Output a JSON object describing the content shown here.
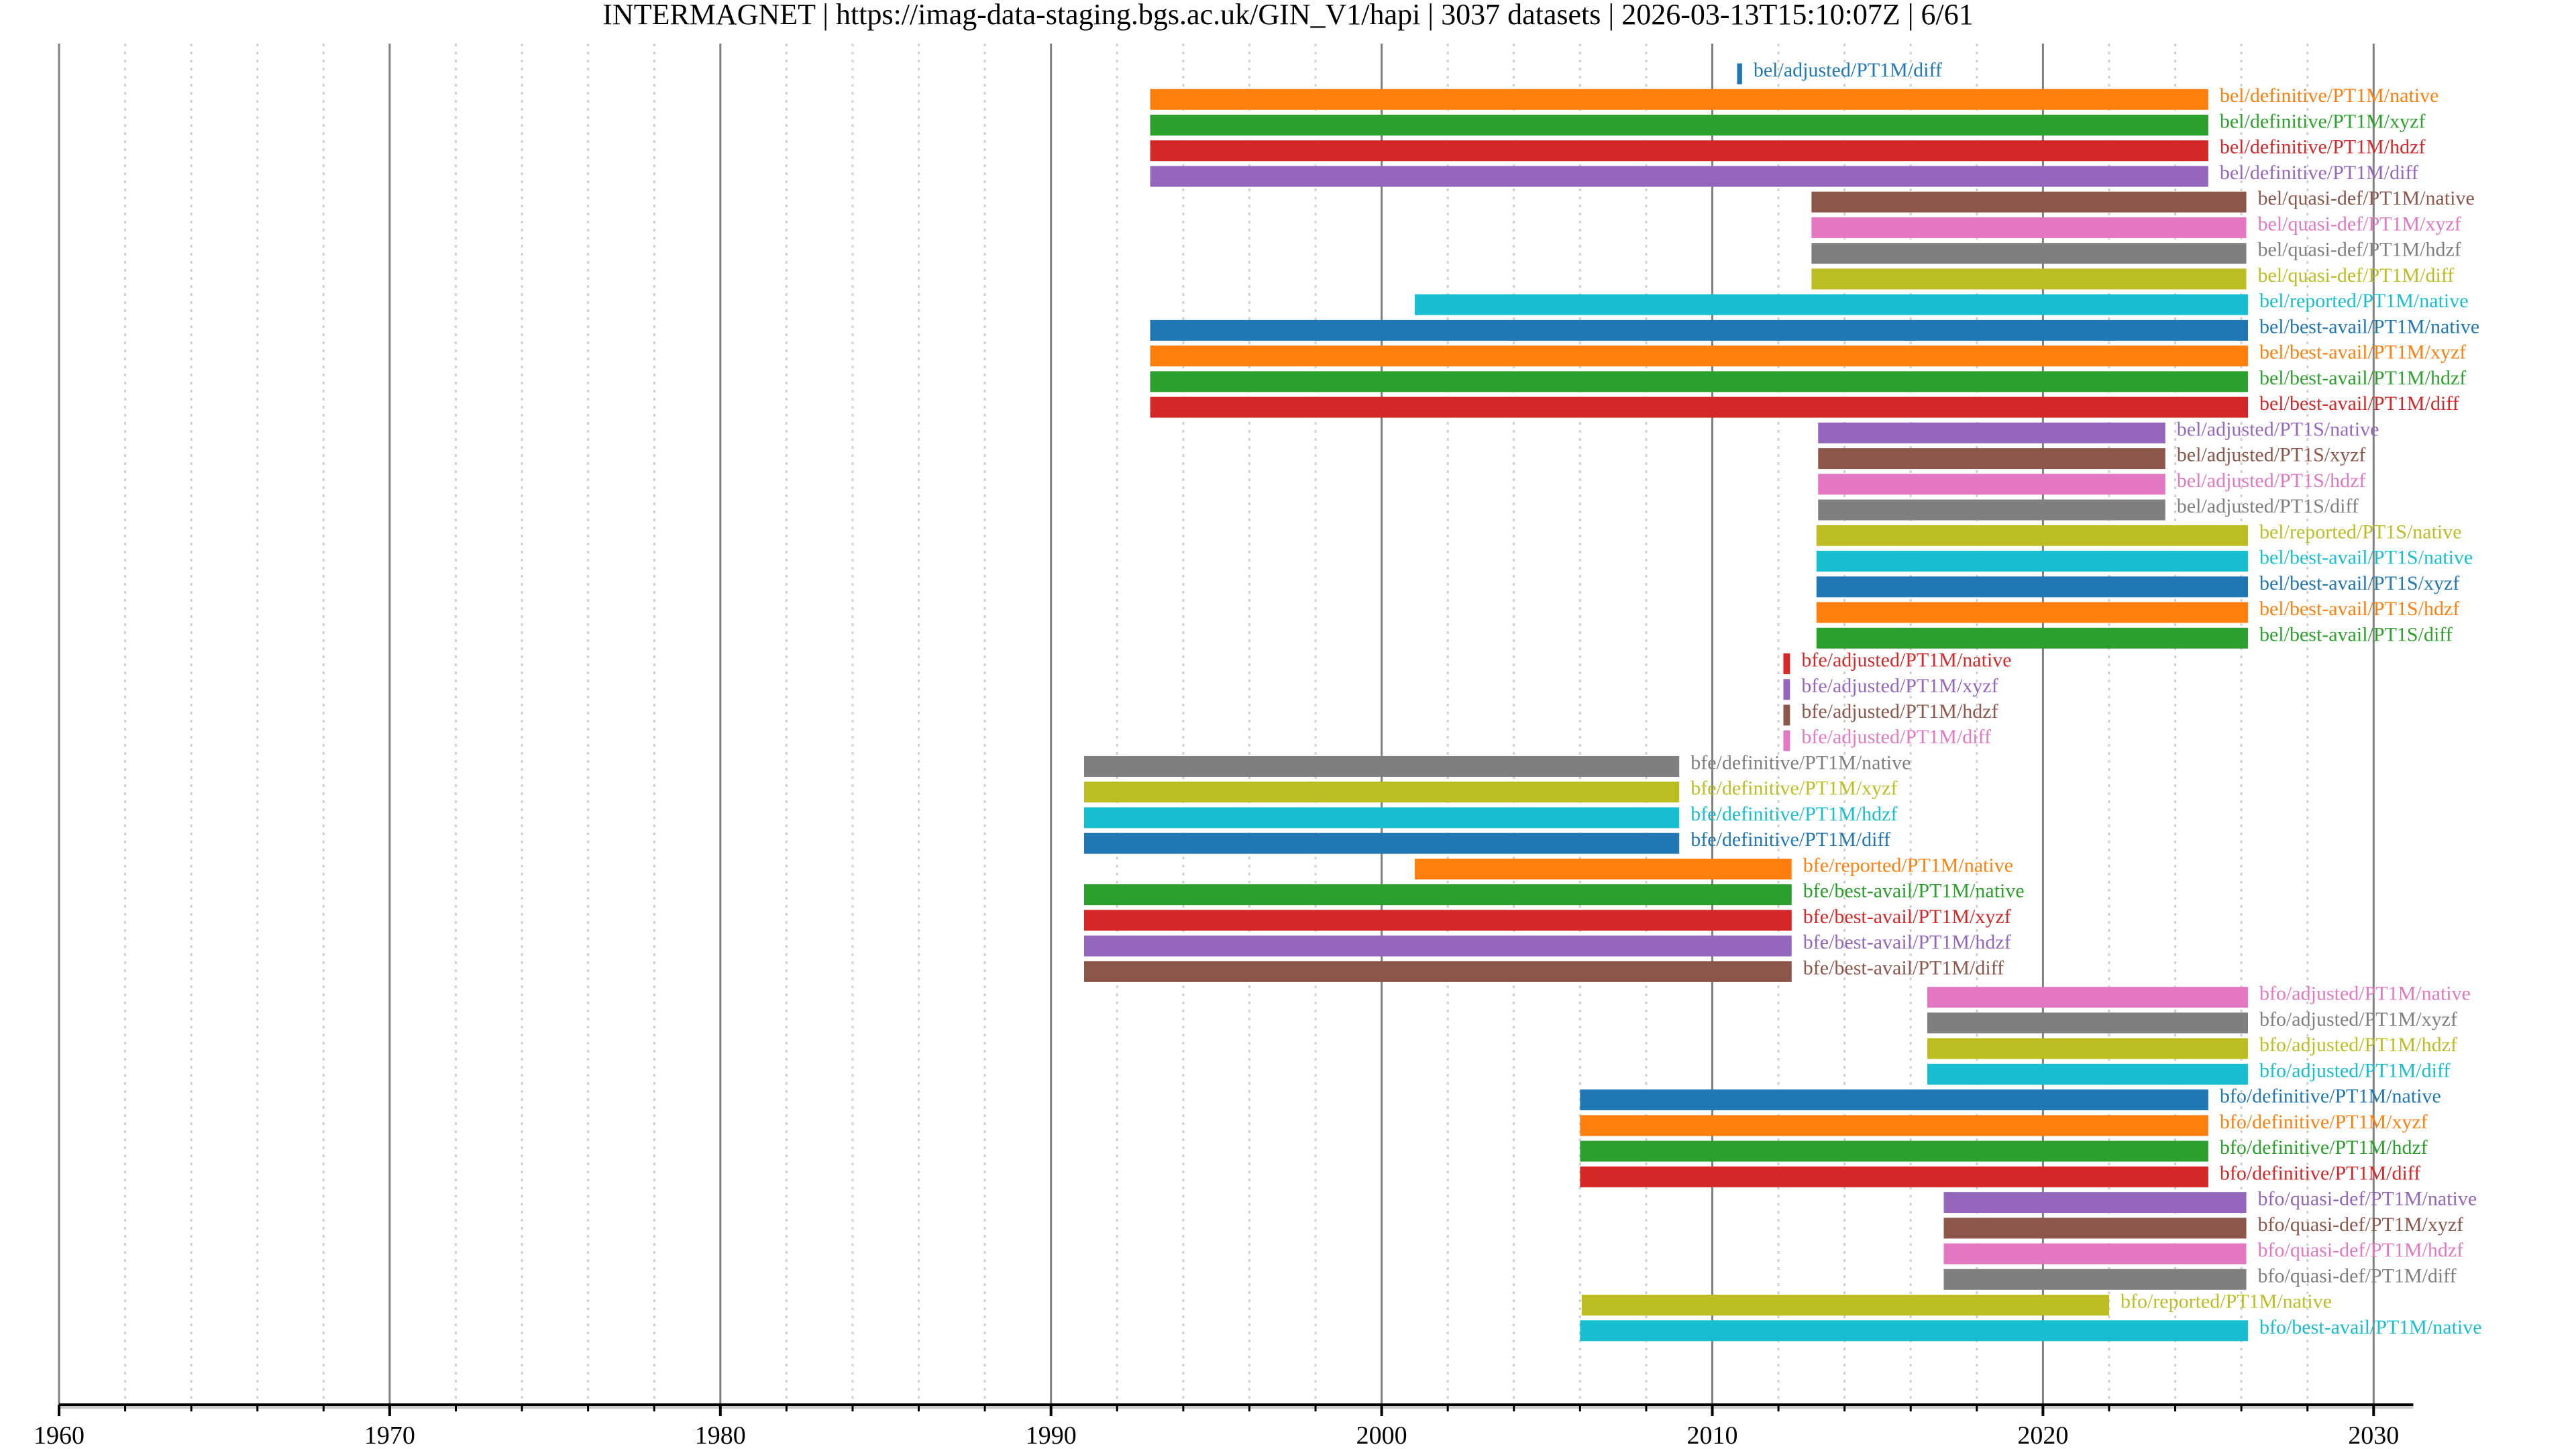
{
  "chart_data": {
    "type": "timeline",
    "title": "INTERMAGNET | https://imag-data-staging.bgs.ac.uk/GIN_V1/hapi | 3037 datasets | 2026-03-13T15:10:07Z | 6/61",
    "xlabel": "",
    "ylabel": "",
    "xlim": [
      1960,
      2031.2
    ],
    "x_ticks": [
      "1960",
      "1970",
      "1980",
      "1990",
      "2000",
      "2010",
      "2020",
      "2030"
    ],
    "grid": {
      "major_every_years": 10,
      "minor_every_years": 2,
      "minor_style": "dashed"
    },
    "palette": [
      "#1f77b4",
      "#ff7f0e",
      "#2ca02c",
      "#d62728",
      "#9467bd",
      "#8c564b",
      "#e377c2",
      "#7f7f7f",
      "#bcbd22",
      "#17becf"
    ],
    "rows": [
      {
        "name": "bel/adjusted/PT1M/diff",
        "start": 2010.75,
        "end": 2010.9
      },
      {
        "name": "bel/definitive/PT1M/native",
        "start": 1993.0,
        "end": 2025.0
      },
      {
        "name": "bel/definitive/PT1M/xyzf",
        "start": 1993.0,
        "end": 2025.0
      },
      {
        "name": "bel/definitive/PT1M/hdzf",
        "start": 1993.0,
        "end": 2025.0
      },
      {
        "name": "bel/definitive/PT1M/diff",
        "start": 1993.0,
        "end": 2025.0
      },
      {
        "name": "bel/quasi-def/PT1M/native",
        "start": 2013.0,
        "end": 2026.15
      },
      {
        "name": "bel/quasi-def/PT1M/xyzf",
        "start": 2013.0,
        "end": 2026.15
      },
      {
        "name": "bel/quasi-def/PT1M/hdzf",
        "start": 2013.0,
        "end": 2026.15
      },
      {
        "name": "bel/quasi-def/PT1M/diff",
        "start": 2013.0,
        "end": 2026.15
      },
      {
        "name": "bel/reported/PT1M/native",
        "start": 2001.0,
        "end": 2026.2
      },
      {
        "name": "bel/best-avail/PT1M/native",
        "start": 1993.0,
        "end": 2026.2
      },
      {
        "name": "bel/best-avail/PT1M/xyzf",
        "start": 1993.0,
        "end": 2026.2
      },
      {
        "name": "bel/best-avail/PT1M/hdzf",
        "start": 1993.0,
        "end": 2026.2
      },
      {
        "name": "bel/best-avail/PT1M/diff",
        "start": 1993.0,
        "end": 2026.2
      },
      {
        "name": "bel/adjusted/PT1S/native",
        "start": 2013.2,
        "end": 2023.7
      },
      {
        "name": "bel/adjusted/PT1S/xyzf",
        "start": 2013.2,
        "end": 2023.7
      },
      {
        "name": "bel/adjusted/PT1S/hdzf",
        "start": 2013.2,
        "end": 2023.7
      },
      {
        "name": "bel/adjusted/PT1S/diff",
        "start": 2013.2,
        "end": 2023.7
      },
      {
        "name": "bel/reported/PT1S/native",
        "start": 2013.15,
        "end": 2026.2
      },
      {
        "name": "bel/best-avail/PT1S/native",
        "start": 2013.15,
        "end": 2026.2
      },
      {
        "name": "bel/best-avail/PT1S/xyzf",
        "start": 2013.15,
        "end": 2026.2
      },
      {
        "name": "bel/best-avail/PT1S/hdzf",
        "start": 2013.15,
        "end": 2026.2
      },
      {
        "name": "bel/best-avail/PT1S/diff",
        "start": 2013.15,
        "end": 2026.2
      },
      {
        "name": "bfe/adjusted/PT1M/native",
        "start": 2012.15,
        "end": 2012.35
      },
      {
        "name": "bfe/adjusted/PT1M/xyzf",
        "start": 2012.15,
        "end": 2012.35
      },
      {
        "name": "bfe/adjusted/PT1M/hdzf",
        "start": 2012.15,
        "end": 2012.35
      },
      {
        "name": "bfe/adjusted/PT1M/diff",
        "start": 2012.15,
        "end": 2012.35
      },
      {
        "name": "bfe/definitive/PT1M/native",
        "start": 1991.0,
        "end": 2009.0
      },
      {
        "name": "bfe/definitive/PT1M/xyzf",
        "start": 1991.0,
        "end": 2009.0
      },
      {
        "name": "bfe/definitive/PT1M/hdzf",
        "start": 1991.0,
        "end": 2009.0
      },
      {
        "name": "bfe/definitive/PT1M/diff",
        "start": 1991.0,
        "end": 2009.0
      },
      {
        "name": "bfe/reported/PT1M/native",
        "start": 2001.0,
        "end": 2012.4
      },
      {
        "name": "bfe/best-avail/PT1M/native",
        "start": 1991.0,
        "end": 2012.4
      },
      {
        "name": "bfe/best-avail/PT1M/xyzf",
        "start": 1991.0,
        "end": 2012.4
      },
      {
        "name": "bfe/best-avail/PT1M/hdzf",
        "start": 1991.0,
        "end": 2012.4
      },
      {
        "name": "bfe/best-avail/PT1M/diff",
        "start": 1991.0,
        "end": 2012.4
      },
      {
        "name": "bfo/adjusted/PT1M/native",
        "start": 2016.5,
        "end": 2026.2
      },
      {
        "name": "bfo/adjusted/PT1M/xyzf",
        "start": 2016.5,
        "end": 2026.2
      },
      {
        "name": "bfo/adjusted/PT1M/hdzf",
        "start": 2016.5,
        "end": 2026.2
      },
      {
        "name": "bfo/adjusted/PT1M/diff",
        "start": 2016.5,
        "end": 2026.2
      },
      {
        "name": "bfo/definitive/PT1M/native",
        "start": 2006.0,
        "end": 2025.0
      },
      {
        "name": "bfo/definitive/PT1M/xyzf",
        "start": 2006.0,
        "end": 2025.0
      },
      {
        "name": "bfo/definitive/PT1M/hdzf",
        "start": 2006.0,
        "end": 2025.0
      },
      {
        "name": "bfo/definitive/PT1M/diff",
        "start": 2006.0,
        "end": 2025.0
      },
      {
        "name": "bfo/quasi-def/PT1M/native",
        "start": 2017.0,
        "end": 2026.15
      },
      {
        "name": "bfo/quasi-def/PT1M/xyzf",
        "start": 2017.0,
        "end": 2026.15
      },
      {
        "name": "bfo/quasi-def/PT1M/hdzf",
        "start": 2017.0,
        "end": 2026.15
      },
      {
        "name": "bfo/quasi-def/PT1M/diff",
        "start": 2017.0,
        "end": 2026.15
      },
      {
        "name": "bfo/reported/PT1M/native",
        "start": 2006.05,
        "end": 2022.0
      },
      {
        "name": "bfo/best-avail/PT1M/native",
        "start": 2006.0,
        "end": 2026.2
      }
    ]
  }
}
